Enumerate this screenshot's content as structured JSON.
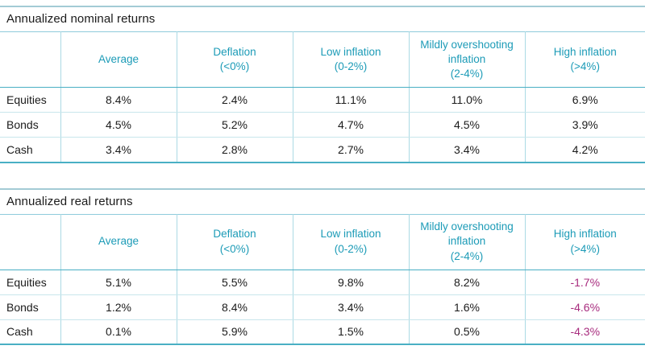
{
  "colors": {
    "header_text": "#1C9BB7",
    "negative_text": "#A82C7E",
    "body_text": "#1B1B1B",
    "section_top_line": "#A3CBD5",
    "title_underline": "#8FCBDB",
    "header_bottom_line": "#49AFC4",
    "row_separator": "#C8E6EC",
    "column_separator": "#ABDAE4",
    "table_bottom_line": "#49AFC4"
  },
  "chart_data": [
    {
      "type": "table",
      "title": "Annualized nominal returns",
      "columns": [
        "",
        "Average",
        "Deflation\n(<0%)",
        "Low inflation\n(0-2%)",
        "Mildly overshooting\ninflation\n(2-4%)",
        "High inflation\n(>4%)"
      ],
      "rows": [
        [
          "Equities",
          "8.4%",
          "2.4%",
          "11.1%",
          "11.0%",
          "6.9%"
        ],
        [
          "Bonds",
          "4.5%",
          "5.2%",
          "4.7%",
          "4.5%",
          "3.9%"
        ],
        [
          "Cash",
          "3.4%",
          "2.8%",
          "2.7%",
          "3.4%",
          "4.2%"
        ]
      ]
    },
    {
      "type": "table",
      "title": "Annualized real returns",
      "columns": [
        "",
        "Average",
        "Deflation\n(<0%)",
        "Low inflation\n(0-2%)",
        "Mildly overshooting\ninflation\n(2-4%)",
        "High inflation\n(>4%)"
      ],
      "rows": [
        [
          "Equities",
          "5.1%",
          "5.5%",
          "9.8%",
          "8.2%",
          "-1.7%"
        ],
        [
          "Bonds",
          "1.2%",
          "8.4%",
          "3.4%",
          "1.6%",
          "-4.6%"
        ],
        [
          "Cash",
          "0.1%",
          "5.9%",
          "1.5%",
          "0.5%",
          "-4.3%"
        ]
      ]
    }
  ]
}
